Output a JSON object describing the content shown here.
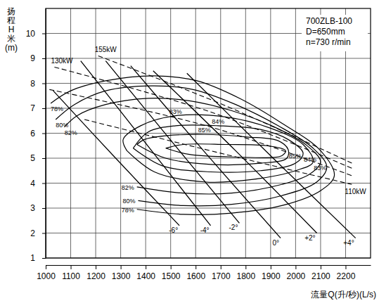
{
  "chart_data": {
    "type": "line",
    "title": "700ZLB-100",
    "annotations": [
      "D=650mm",
      "n=730 r/min"
    ],
    "xlabel": "流量Q(升/秒)(L/s)",
    "ylabel": "扬程H米(m)",
    "xlim": [
      1000,
      2300
    ],
    "xticks": [
      1000,
      1100,
      1200,
      1300,
      1400,
      1500,
      1600,
      1700,
      1800,
      1900,
      2000,
      2100,
      2200
    ],
    "ylim": [
      1,
      11
    ],
    "yticks": [
      1,
      2,
      3,
      4,
      5,
      6,
      7,
      8,
      9,
      10
    ],
    "grid": true,
    "color": "#000000",
    "series": [
      {
        "name": "-6°",
        "x": [
          1030,
          1280,
          1535
        ],
        "values": [
          7.7,
          5.0,
          2.3
        ]
      },
      {
        "name": "-4°",
        "x": [
          1140,
          1400,
          1660
        ],
        "values": [
          8.9,
          5.6,
          2.3
        ]
      },
      {
        "name": "-2°",
        "x": [
          1240,
          1510,
          1775
        ],
        "values": [
          8.9,
          5.6,
          2.4
        ]
      },
      {
        "name": "0°",
        "x": [
          1340,
          1640,
          1940
        ],
        "values": [
          8.7,
          5.2,
          1.8
        ]
      },
      {
        "name": "+2°",
        "x": [
          1430,
          1760,
          2085
        ],
        "values": [
          8.5,
          5.3,
          2.0
        ]
      },
      {
        "name": "+4°",
        "x": [
          1565,
          1900,
          2240
        ],
        "values": [
          8.4,
          5.1,
          1.8
        ]
      }
    ],
    "efficiency_contours": [
      {
        "name": "78%",
        "x": [
          1365,
          1550,
          1745,
          1945,
          2100,
          2155,
          2100,
          1945,
          1775,
          1605,
          1435,
          1240,
          1100,
          1020
        ],
        "values": [
          2.95,
          2.75,
          2.8,
          3.1,
          3.7,
          4.3,
          5.3,
          6.4,
          7.4,
          8.1,
          8.3,
          8.1,
          7.7,
          7.2
        ]
      },
      {
        "name": "80%",
        "x": [
          1370,
          1550,
          1745,
          1945,
          2085,
          2125,
          2070,
          1930,
          1760,
          1590,
          1425,
          1240,
          1115,
          1040
        ],
        "values": [
          3.3,
          3.1,
          3.15,
          3.5,
          4.05,
          4.65,
          5.4,
          6.3,
          7.15,
          7.75,
          7.9,
          7.7,
          7.15,
          6.55
        ]
      },
      {
        "name": "82%",
        "x": [
          1365,
          1550,
          1745,
          1945,
          2055,
          2100,
          2040,
          1915,
          1745,
          1575,
          1410,
          1240,
          1125,
          1075
        ],
        "values": [
          3.85,
          3.6,
          3.6,
          3.95,
          4.35,
          4.85,
          5.55,
          6.25,
          6.9,
          7.3,
          7.4,
          7.15,
          6.7,
          6.25
        ]
      },
      {
        "name": "83%",
        "x": [
          1325,
          1435,
          1635,
          1830,
          2000,
          2070,
          2030,
          1900,
          1720,
          1520,
          1380,
          1310,
          1325
        ],
        "values": [
          5.3,
          4.45,
          4.05,
          4.15,
          4.5,
          4.85,
          5.55,
          6.2,
          6.65,
          6.7,
          6.3,
          5.75,
          5.3
        ]
      },
      {
        "name": "84%",
        "x": [
          1350,
          1465,
          1660,
          1860,
          2000,
          2030,
          1970,
          1860,
          1690,
          1520,
          1410,
          1350
        ],
        "values": [
          5.4,
          4.7,
          4.45,
          4.5,
          4.8,
          5.2,
          5.75,
          6.15,
          6.3,
          6.3,
          6.05,
          5.4
        ]
      },
      {
        "name": "85%",
        "x": [
          1365,
          1480,
          1660,
          1860,
          1965,
          1970,
          1930,
          1805,
          1635,
          1480,
          1395,
          1365
        ],
        "values": [
          5.55,
          5.0,
          4.75,
          4.8,
          5.0,
          5.35,
          5.7,
          5.85,
          5.95,
          5.9,
          5.75,
          5.55
        ]
      },
      {
        "x": [
          1480,
          1575,
          1745,
          1945,
          1960,
          1885,
          1720,
          1550,
          1480
        ],
        "values": [
          5.4,
          5.15,
          5.05,
          5.1,
          5.3,
          5.5,
          5.55,
          5.55,
          5.4
        ]
      }
    ],
    "power_lines": [
      {
        "name": "155kW",
        "line_style": "dashed",
        "x": [
          1210,
          1720,
          2225
        ],
        "values": [
          9.1,
          7.1,
          4.8
        ]
      },
      {
        "name": "130kW",
        "line_style": "dashed",
        "x": [
          1035,
          1660,
          2225
        ],
        "values": [
          8.65,
          6.85,
          4.6
        ]
      },
      {
        "line_style": "dashed",
        "x": [
          1015,
          1660,
          2225
        ],
        "values": [
          7.75,
          6.25,
          4.3
        ]
      },
      {
        "name": "110kW",
        "line_style": "dashed",
        "x": [
          1155,
          1720,
          2225
        ],
        "values": [
          6.55,
          5.15,
          3.95
        ]
      }
    ]
  }
}
